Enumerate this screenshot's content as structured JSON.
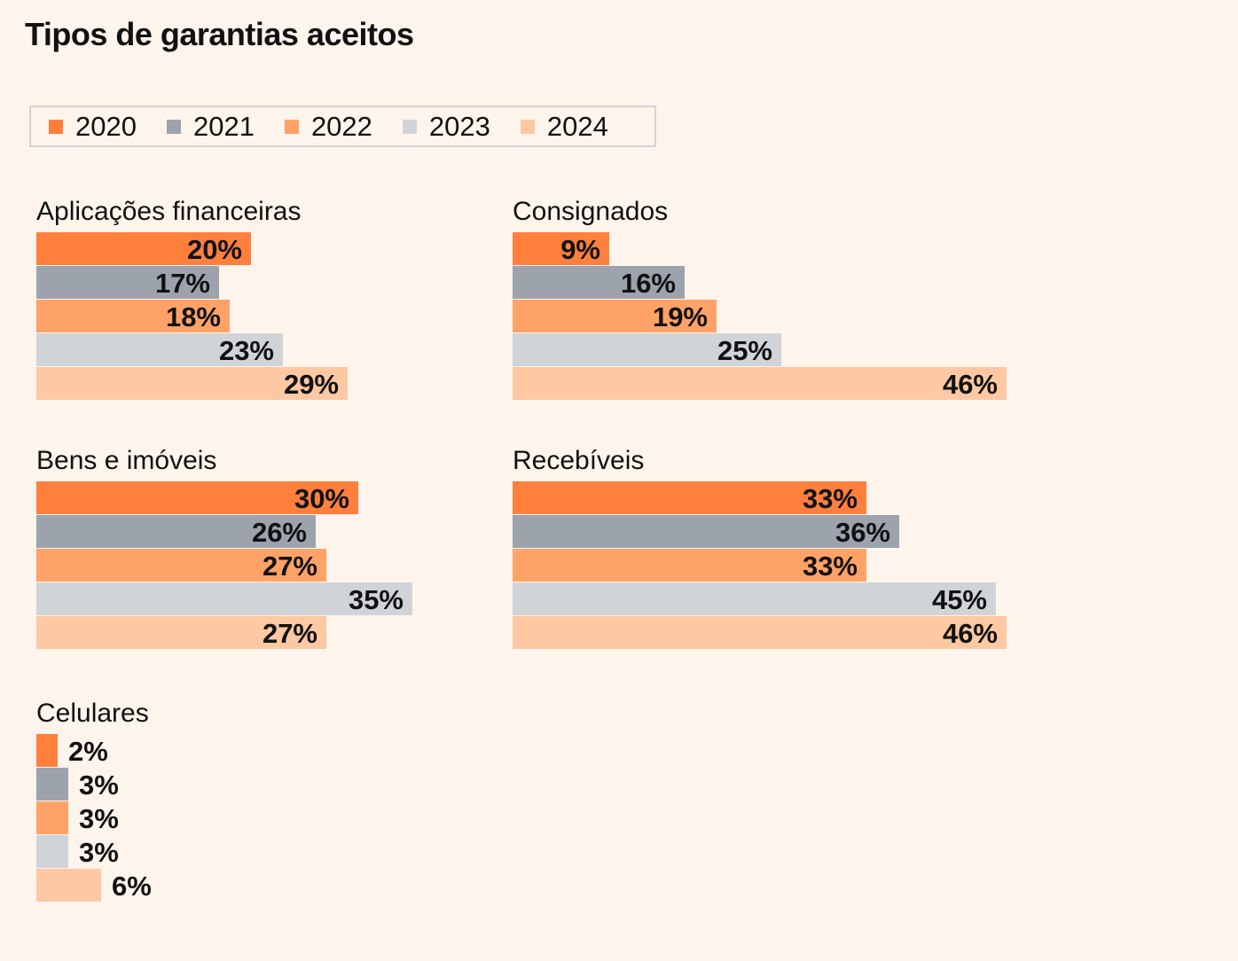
{
  "title": "Tipos de garantias aceitos",
  "legend": [
    {
      "label": "2020",
      "color": "#ff7f3d"
    },
    {
      "label": "2021",
      "color": "#9ca3ad"
    },
    {
      "label": "2022",
      "color": "#ffa268"
    },
    {
      "label": "2023",
      "color": "#d0d4d8"
    },
    {
      "label": "2024",
      "color": "#fdc8a2"
    }
  ],
  "chart_data": [
    {
      "type": "bar",
      "title": "Aplicações financeiras",
      "categories": [
        "2020",
        "2021",
        "2022",
        "2023",
        "2024"
      ],
      "values": [
        20,
        17,
        18,
        23,
        29
      ],
      "labels": [
        "20%",
        "17%",
        "18%",
        "23%",
        "29%"
      ],
      "unit": "%"
    },
    {
      "type": "bar",
      "title": "Consignados",
      "categories": [
        "2020",
        "2021",
        "2022",
        "2023",
        "2024"
      ],
      "values": [
        9,
        16,
        19,
        25,
        46
      ],
      "labels": [
        "9%",
        "16%",
        "19%",
        "25%",
        "46%"
      ],
      "unit": "%"
    },
    {
      "type": "bar",
      "title": "Bens e imóveis",
      "categories": [
        "2020",
        "2021",
        "2022",
        "2023",
        "2024"
      ],
      "values": [
        30,
        26,
        27,
        35,
        27
      ],
      "labels": [
        "30%",
        "26%",
        "27%",
        "35%",
        "27%"
      ],
      "unit": "%"
    },
    {
      "type": "bar",
      "title": "Recebíveis",
      "categories": [
        "2020",
        "2021",
        "2022",
        "2023",
        "2024"
      ],
      "values": [
        33,
        36,
        33,
        45,
        46
      ],
      "labels": [
        "33%",
        "36%",
        "33%",
        "45%",
        "46%"
      ],
      "unit": "%"
    },
    {
      "type": "bar",
      "title": "Celulares",
      "categories": [
        "2020",
        "2021",
        "2022",
        "2023",
        "2024"
      ],
      "values": [
        2,
        3,
        3,
        3,
        6
      ],
      "labels": [
        "2%",
        "3%",
        "3%",
        "3%",
        "6%"
      ],
      "unit": "%"
    }
  ]
}
